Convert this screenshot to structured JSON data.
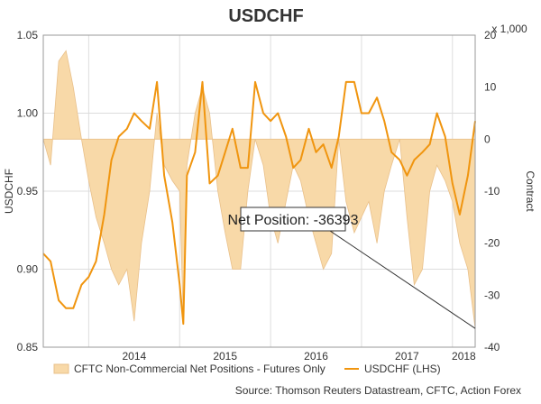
{
  "chart_data": {
    "type": "line",
    "title": "USDCHF",
    "ylabel_left": "USDCHF",
    "ylabel_right": "Contract",
    "right_axis_multiplier": "x 1,000",
    "x_tick_labels": [
      "2014",
      "2015",
      "2016",
      "2017",
      "2018"
    ],
    "ylim_left": [
      0.85,
      1.05
    ],
    "yticks_left": [
      "0.85",
      "0.90",
      "0.95",
      "1.00",
      "1.05"
    ],
    "ylim_right": [
      -40,
      20
    ],
    "yticks_right": [
      "-40",
      "-30",
      "-20",
      "-10",
      "0",
      "10",
      "20"
    ],
    "grid": true,
    "legend_position": "bottom",
    "colors": {
      "usdchf_line": "#f0950f",
      "net_fill": "#f8d9a8",
      "net_fill_edge": "#e9c08a",
      "grid": "#dddddd"
    },
    "x": [
      2013.5,
      2013.58,
      2013.67,
      2013.75,
      2013.83,
      2013.92,
      2014.0,
      2014.08,
      2014.17,
      2014.25,
      2014.33,
      2014.42,
      2014.5,
      2014.58,
      2014.67,
      2014.75,
      2014.83,
      2014.92,
      2015.0,
      2015.04,
      2015.08,
      2015.17,
      2015.25,
      2015.33,
      2015.42,
      2015.5,
      2015.58,
      2015.67,
      2015.75,
      2015.83,
      2015.92,
      2016.0,
      2016.08,
      2016.17,
      2016.25,
      2016.33,
      2016.42,
      2016.5,
      2016.58,
      2016.67,
      2016.75,
      2016.83,
      2016.92,
      2017.0,
      2017.08,
      2017.17,
      2017.25,
      2017.33,
      2017.42,
      2017.5,
      2017.58,
      2017.67,
      2017.75,
      2017.83,
      2017.92,
      2018.0,
      2018.08,
      2018.17,
      2018.25
    ],
    "series": [
      {
        "name": "USDCHF (LHS)",
        "axis": "left",
        "kind": "line",
        "values": [
          0.91,
          0.905,
          0.88,
          0.875,
          0.875,
          0.89,
          0.895,
          0.905,
          0.935,
          0.97,
          0.985,
          0.99,
          1.0,
          0.995,
          0.99,
          1.02,
          0.96,
          0.93,
          0.89,
          0.865,
          0.96,
          0.975,
          1.02,
          0.955,
          0.96,
          0.975,
          0.99,
          0.965,
          0.965,
          1.02,
          1.0,
          0.995,
          1.0,
          0.985,
          0.965,
          0.97,
          0.99,
          0.975,
          0.98,
          0.965,
          0.985,
          1.02,
          1.02,
          1.0,
          1.0,
          1.01,
          0.995,
          0.975,
          0.97,
          0.96,
          0.97,
          0.975,
          0.98,
          1.0,
          0.985,
          0.955,
          0.935,
          0.96,
          0.995
        ]
      },
      {
        "name": "CFTC Non-Commercial Net Positions - Futures Only",
        "axis": "right",
        "kind": "area",
        "values": [
          0,
          -5,
          15,
          17,
          10,
          0,
          -8,
          -15,
          -20,
          -25,
          -28,
          -25,
          -35,
          -20,
          -10,
          5,
          -5,
          -8,
          -10,
          -35,
          -5,
          5,
          10,
          5,
          -10,
          -18,
          -25,
          -25,
          -10,
          0,
          -5,
          -15,
          -20,
          -12,
          -5,
          -8,
          -15,
          -20,
          -25,
          -22,
          0,
          -12,
          -18,
          -15,
          -12,
          -20,
          -10,
          -5,
          0,
          -15,
          -28,
          -25,
          -10,
          -5,
          -8,
          -12,
          -20,
          -25,
          -36.393
        ]
      }
    ],
    "annotation": "Net Position: -36393",
    "legend": [
      {
        "label": "CFTC Non-Commercial Net Positions - Futures Only",
        "symbol": "area"
      },
      {
        "label": "USDCHF (LHS)",
        "symbol": "line"
      }
    ],
    "source": "Source: Thomson Reuters Datastream, CFTC, Action Forex"
  }
}
